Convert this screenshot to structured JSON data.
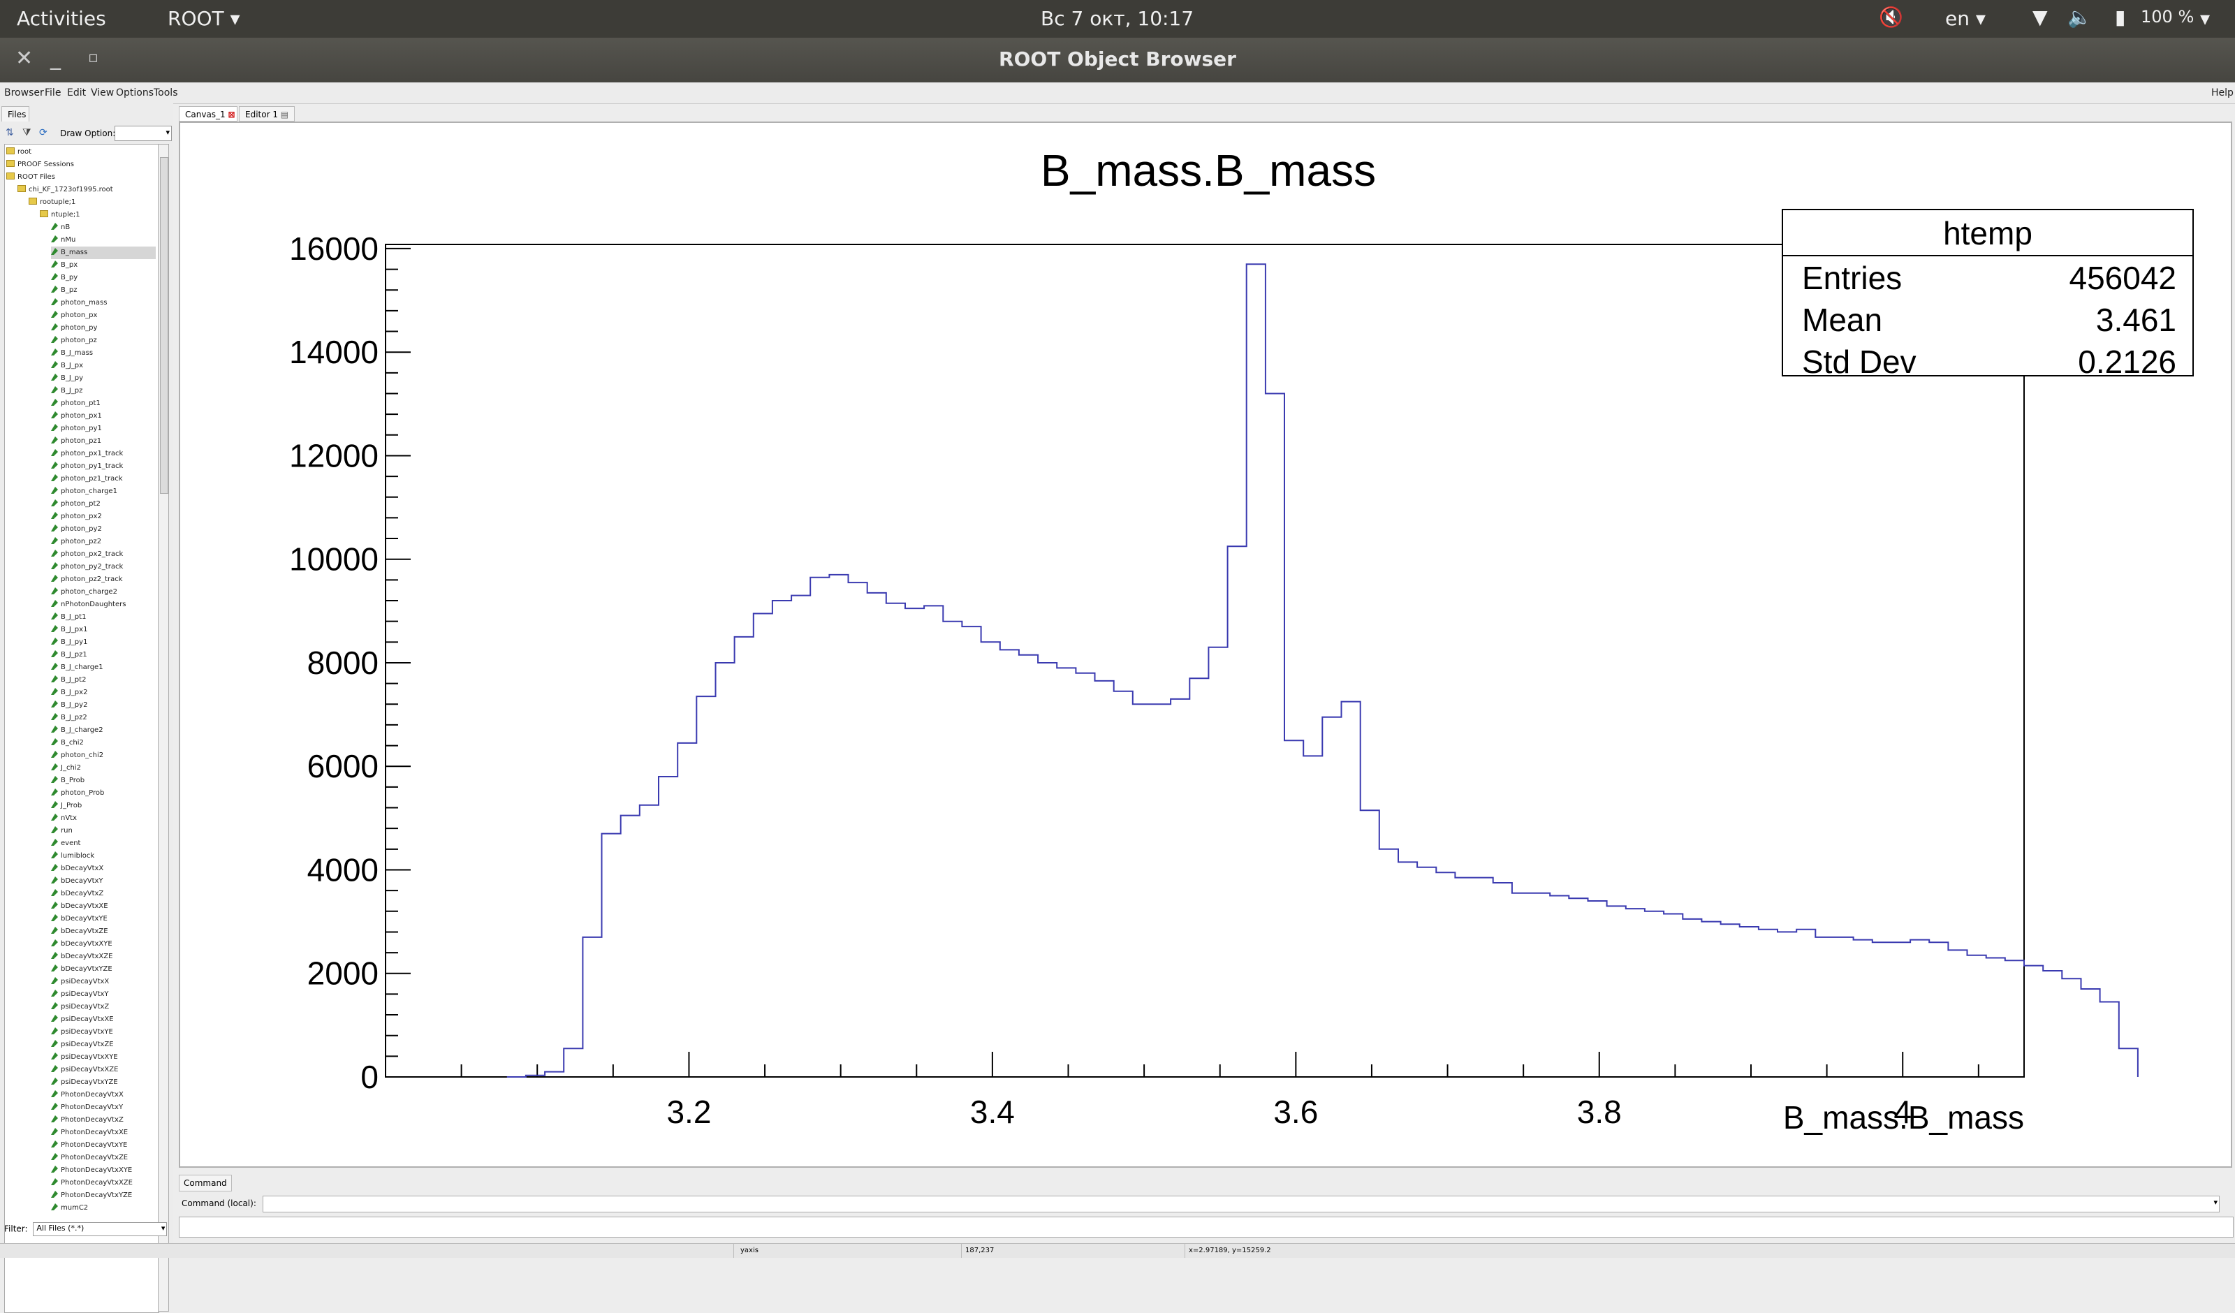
{
  "topbar": {
    "activities": "Activities",
    "app_menu": "ROOT",
    "clock": "Вс  7 окт, 10:17",
    "lang": "en",
    "battery": "100 %"
  },
  "window": {
    "title": "ROOT Object Browser"
  },
  "menubar": {
    "items": [
      "Browser",
      "File",
      "Edit",
      "View",
      "Options",
      "Tools"
    ],
    "help": "Help"
  },
  "left_panel": {
    "files_tab": "Files",
    "draw_option_label": "Draw Option:",
    "filter_label": "Filter:",
    "filter_value": "All Files (*.*)",
    "tree": [
      {
        "label": "root",
        "level": 0,
        "type": "folder"
      },
      {
        "label": "PROOF Sessions",
        "level": 0,
        "type": "folder"
      },
      {
        "label": "ROOT Files",
        "level": 0,
        "type": "folder"
      },
      {
        "label": "chi_KF_1723of1995.root",
        "level": 1,
        "type": "file"
      },
      {
        "label": "rootuple;1",
        "level": 2,
        "type": "folder"
      },
      {
        "label": "ntuple;1",
        "level": 3,
        "type": "tree"
      },
      {
        "label": "nB",
        "level": 4,
        "type": "leaf"
      },
      {
        "label": "nMu",
        "level": 4,
        "type": "leaf"
      },
      {
        "label": "B_mass",
        "level": 4,
        "type": "leaf",
        "selected": true
      },
      {
        "label": "B_px",
        "level": 4,
        "type": "leaf"
      },
      {
        "label": "B_py",
        "level": 4,
        "type": "leaf"
      },
      {
        "label": "B_pz",
        "level": 4,
        "type": "leaf"
      },
      {
        "label": "photon_mass",
        "level": 4,
        "type": "leaf"
      },
      {
        "label": "photon_px",
        "level": 4,
        "type": "leaf"
      },
      {
        "label": "photon_py",
        "level": 4,
        "type": "leaf"
      },
      {
        "label": "photon_pz",
        "level": 4,
        "type": "leaf"
      },
      {
        "label": "B_J_mass",
        "level": 4,
        "type": "leaf"
      },
      {
        "label": "B_J_px",
        "level": 4,
        "type": "leaf"
      },
      {
        "label": "B_J_py",
        "level": 4,
        "type": "leaf"
      },
      {
        "label": "B_J_pz",
        "level": 4,
        "type": "leaf"
      },
      {
        "label": "photon_pt1",
        "level": 4,
        "type": "leaf"
      },
      {
        "label": "photon_px1",
        "level": 4,
        "type": "leaf"
      },
      {
        "label": "photon_py1",
        "level": 4,
        "type": "leaf"
      },
      {
        "label": "photon_pz1",
        "level": 4,
        "type": "leaf"
      },
      {
        "label": "photon_px1_track",
        "level": 4,
        "type": "leaf"
      },
      {
        "label": "photon_py1_track",
        "level": 4,
        "type": "leaf"
      },
      {
        "label": "photon_pz1_track",
        "level": 4,
        "type": "leaf"
      },
      {
        "label": "photon_charge1",
        "level": 4,
        "type": "leaf"
      },
      {
        "label": "photon_pt2",
        "level": 4,
        "type": "leaf"
      },
      {
        "label": "photon_px2",
        "level": 4,
        "type": "leaf"
      },
      {
        "label": "photon_py2",
        "level": 4,
        "type": "leaf"
      },
      {
        "label": "photon_pz2",
        "level": 4,
        "type": "leaf"
      },
      {
        "label": "photon_px2_track",
        "level": 4,
        "type": "leaf"
      },
      {
        "label": "photon_py2_track",
        "level": 4,
        "type": "leaf"
      },
      {
        "label": "photon_pz2_track",
        "level": 4,
        "type": "leaf"
      },
      {
        "label": "photon_charge2",
        "level": 4,
        "type": "leaf"
      },
      {
        "label": "nPhotonDaughters",
        "level": 4,
        "type": "leaf"
      },
      {
        "label": "B_J_pt1",
        "level": 4,
        "type": "leaf"
      },
      {
        "label": "B_J_px1",
        "level": 4,
        "type": "leaf"
      },
      {
        "label": "B_J_py1",
        "level": 4,
        "type": "leaf"
      },
      {
        "label": "B_J_pz1",
        "level": 4,
        "type": "leaf"
      },
      {
        "label": "B_J_charge1",
        "level": 4,
        "type": "leaf"
      },
      {
        "label": "B_J_pt2",
        "level": 4,
        "type": "leaf"
      },
      {
        "label": "B_J_px2",
        "level": 4,
        "type": "leaf"
      },
      {
        "label": "B_J_py2",
        "level": 4,
        "type": "leaf"
      },
      {
        "label": "B_J_pz2",
        "level": 4,
        "type": "leaf"
      },
      {
        "label": "B_J_charge2",
        "level": 4,
        "type": "leaf"
      },
      {
        "label": "B_chi2",
        "level": 4,
        "type": "leaf"
      },
      {
        "label": "photon_chi2",
        "level": 4,
        "type": "leaf"
      },
      {
        "label": "J_chi2",
        "level": 4,
        "type": "leaf"
      },
      {
        "label": "B_Prob",
        "level": 4,
        "type": "leaf"
      },
      {
        "label": "photon_Prob",
        "level": 4,
        "type": "leaf"
      },
      {
        "label": "J_Prob",
        "level": 4,
        "type": "leaf"
      },
      {
        "label": "nVtx",
        "level": 4,
        "type": "leaf"
      },
      {
        "label": "run",
        "level": 4,
        "type": "leaf"
      },
      {
        "label": "event",
        "level": 4,
        "type": "leaf"
      },
      {
        "label": "lumiblock",
        "level": 4,
        "type": "leaf"
      },
      {
        "label": "bDecayVtxX",
        "level": 4,
        "type": "leaf"
      },
      {
        "label": "bDecayVtxY",
        "level": 4,
        "type": "leaf"
      },
      {
        "label": "bDecayVtxZ",
        "level": 4,
        "type": "leaf"
      },
      {
        "label": "bDecayVtxXE",
        "level": 4,
        "type": "leaf"
      },
      {
        "label": "bDecayVtxYE",
        "level": 4,
        "type": "leaf"
      },
      {
        "label": "bDecayVtxZE",
        "level": 4,
        "type": "leaf"
      },
      {
        "label": "bDecayVtxXYE",
        "level": 4,
        "type": "leaf"
      },
      {
        "label": "bDecayVtxXZE",
        "level": 4,
        "type": "leaf"
      },
      {
        "label": "bDecayVtxYZE",
        "level": 4,
        "type": "leaf"
      },
      {
        "label": "psiDecayVtxX",
        "level": 4,
        "type": "leaf"
      },
      {
        "label": "psiDecayVtxY",
        "level": 4,
        "type": "leaf"
      },
      {
        "label": "psiDecayVtxZ",
        "level": 4,
        "type": "leaf"
      },
      {
        "label": "psiDecayVtxXE",
        "level": 4,
        "type": "leaf"
      },
      {
        "label": "psiDecayVtxYE",
        "level": 4,
        "type": "leaf"
      },
      {
        "label": "psiDecayVtxZE",
        "level": 4,
        "type": "leaf"
      },
      {
        "label": "psiDecayVtxXYE",
        "level": 4,
        "type": "leaf"
      },
      {
        "label": "psiDecayVtxXZE",
        "level": 4,
        "type": "leaf"
      },
      {
        "label": "psiDecayVtxYZE",
        "level": 4,
        "type": "leaf"
      },
      {
        "label": "PhotonDecayVtxX",
        "level": 4,
        "type": "leaf"
      },
      {
        "label": "PhotonDecayVtxY",
        "level": 4,
        "type": "leaf"
      },
      {
        "label": "PhotonDecayVtxZ",
        "level": 4,
        "type": "leaf"
      },
      {
        "label": "PhotonDecayVtxXE",
        "level": 4,
        "type": "leaf"
      },
      {
        "label": "PhotonDecayVtxYE",
        "level": 4,
        "type": "leaf"
      },
      {
        "label": "PhotonDecayVtxZE",
        "level": 4,
        "type": "leaf"
      },
      {
        "label": "PhotonDecayVtxXYE",
        "level": 4,
        "type": "leaf"
      },
      {
        "label": "PhotonDecayVtxXZE",
        "level": 4,
        "type": "leaf"
      },
      {
        "label": "PhotonDecayVtxYZE",
        "level": 4,
        "type": "leaf"
      },
      {
        "label": "mumC2",
        "level": 4,
        "type": "leaf"
      }
    ]
  },
  "tabs": {
    "canvas": "Canvas_1",
    "editor": "Editor 1"
  },
  "command": {
    "tab": "Command",
    "label": "Command (local):"
  },
  "status": {
    "obj": "yaxis",
    "px": "187,237",
    "coords": "x=2.97189, y=15259.2"
  },
  "colors": {
    "line": "#3a3ab0",
    "topbar": "#3d3c37"
  },
  "chart_data": {
    "type": "histogram",
    "title": "B_mass.B_mass",
    "xlabel": "B_mass.B_mass",
    "ylabel": "",
    "xlim": [
      3.0,
      4.08
    ],
    "ylim": [
      0,
      16000
    ],
    "xticks": [
      3.2,
      3.4,
      3.6,
      3.8,
      4.0
    ],
    "xtick_labels": [
      "3.2",
      "3.4",
      "3.6",
      "3.8",
      "4"
    ],
    "yticks": [
      0,
      2000,
      4000,
      6000,
      8000,
      10000,
      12000,
      14000,
      16000
    ],
    "ytick_labels": [
      "0",
      "2000",
      "4000",
      "6000",
      "8000",
      "10000",
      "12000",
      "14000",
      "16000"
    ],
    "bin_start": 3.08,
    "bin_width": 0.0125,
    "values": [
      0,
      30,
      100,
      550,
      2700,
      4700,
      5050,
      5250,
      5800,
      6450,
      7350,
      8000,
      8500,
      8950,
      9200,
      9300,
      9650,
      9700,
      9550,
      9350,
      9150,
      9050,
      9100,
      8800,
      8700,
      8400,
      8250,
      8150,
      8000,
      7900,
      7800,
      7650,
      7450,
      7200,
      7200,
      7300,
      7700,
      8300,
      10250,
      15700,
      13200,
      6500,
      6200,
      6950,
      7250,
      5150,
      4400,
      4150,
      4050,
      3950,
      3850,
      3850,
      3750,
      3550,
      3550,
      3500,
      3450,
      3400,
      3300,
      3250,
      3200,
      3150,
      3050,
      3000,
      2950,
      2900,
      2850,
      2800,
      2850,
      2700,
      2700,
      2650,
      2600,
      2600,
      2650,
      2600,
      2450,
      2350,
      2300,
      2250,
      2150,
      2050,
      1900,
      1700,
      1450,
      550
    ],
    "stats": {
      "name": "htemp",
      "rows": [
        {
          "label": "Entries",
          "value": "456042"
        },
        {
          "label": "Mean",
          "value": "3.461"
        },
        {
          "label": "Std Dev",
          "value": "0.2126"
        }
      ]
    }
  }
}
